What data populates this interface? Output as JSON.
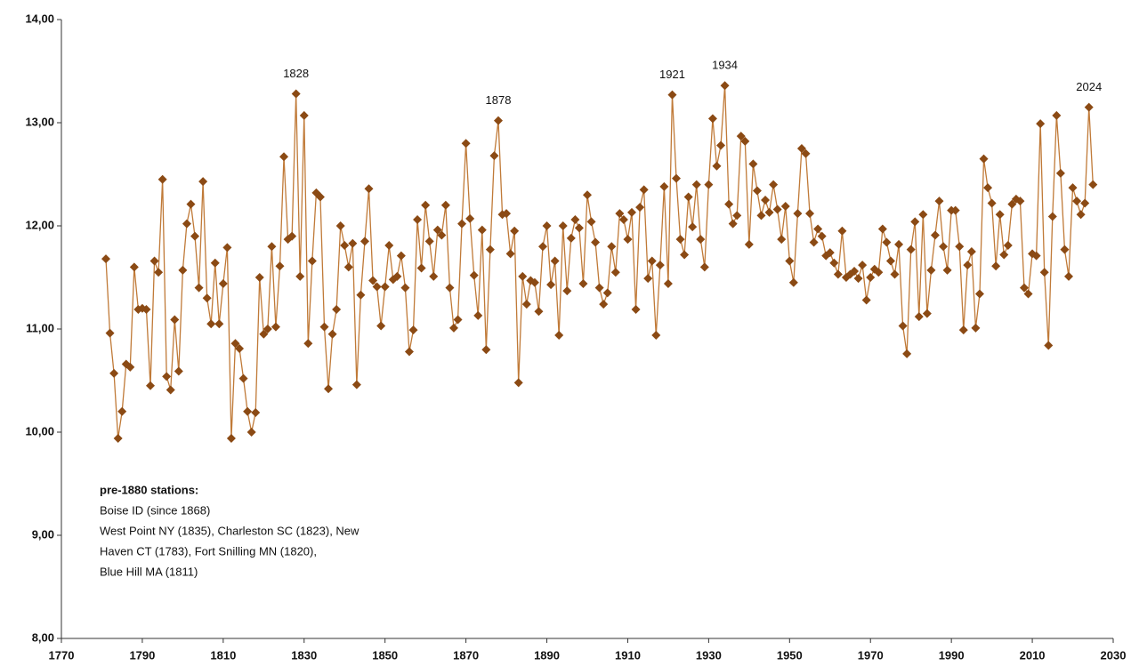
{
  "chart_data": {
    "type": "line",
    "x": [
      1781,
      1782,
      1783,
      1784,
      1785,
      1786,
      1787,
      1788,
      1789,
      1790,
      1791,
      1792,
      1793,
      1794,
      1795,
      1796,
      1797,
      1798,
      1799,
      1800,
      1801,
      1802,
      1803,
      1804,
      1805,
      1806,
      1807,
      1808,
      1809,
      1810,
      1811,
      1812,
      1813,
      1814,
      1815,
      1816,
      1817,
      1818,
      1819,
      1820,
      1821,
      1822,
      1823,
      1824,
      1825,
      1826,
      1827,
      1828,
      1829,
      1830,
      1831,
      1832,
      1833,
      1834,
      1835,
      1836,
      1837,
      1838,
      1839,
      1840,
      1841,
      1842,
      1843,
      1844,
      1845,
      1846,
      1847,
      1848,
      1849,
      1850,
      1851,
      1852,
      1853,
      1854,
      1855,
      1856,
      1857,
      1858,
      1859,
      1860,
      1861,
      1862,
      1863,
      1864,
      1865,
      1866,
      1867,
      1868,
      1869,
      1870,
      1871,
      1872,
      1873,
      1874,
      1875,
      1876,
      1877,
      1878,
      1879,
      1880,
      1881,
      1882,
      1883,
      1884,
      1885,
      1886,
      1887,
      1888,
      1889,
      1890,
      1891,
      1892,
      1893,
      1894,
      1895,
      1896,
      1897,
      1898,
      1899,
      1900,
      1901,
      1902,
      1903,
      1904,
      1905,
      1906,
      1907,
      1908,
      1909,
      1910,
      1911,
      1912,
      1913,
      1914,
      1915,
      1916,
      1917,
      1918,
      1919,
      1920,
      1921,
      1922,
      1923,
      1924,
      1925,
      1926,
      1927,
      1928,
      1929,
      1930,
      1931,
      1932,
      1933,
      1934,
      1935,
      1936,
      1937,
      1938,
      1939,
      1940,
      1941,
      1942,
      1943,
      1944,
      1945,
      1946,
      1947,
      1948,
      1949,
      1950,
      1951,
      1952,
      1953,
      1954,
      1955,
      1956,
      1957,
      1958,
      1959,
      1960,
      1961,
      1962,
      1963,
      1964,
      1965,
      1966,
      1967,
      1968,
      1969,
      1970,
      1971,
      1972,
      1973,
      1974,
      1975,
      1976,
      1977,
      1978,
      1979,
      1980,
      1981,
      1982,
      1983,
      1984,
      1985,
      1986,
      1987,
      1988,
      1989,
      1990,
      1991,
      1992,
      1993,
      1994,
      1995,
      1996,
      1997,
      1998,
      1999,
      2000,
      2001,
      2002,
      2003,
      2004,
      2005,
      2006,
      2007,
      2008,
      2009,
      2010,
      2011,
      2012,
      2013,
      2014,
      2015,
      2016,
      2017,
      2018,
      2019,
      2020,
      2021,
      2022,
      2023,
      2024,
      2025
    ],
    "values": [
      11.68,
      10.96,
      10.57,
      9.94,
      10.2,
      10.66,
      10.63,
      11.6,
      11.19,
      11.2,
      11.19,
      10.45,
      11.66,
      11.55,
      12.45,
      10.54,
      10.41,
      11.09,
      10.59,
      11.57,
      12.02,
      12.21,
      11.9,
      11.4,
      12.43,
      11.3,
      11.05,
      11.64,
      11.05,
      11.44,
      11.79,
      9.94,
      10.86,
      10.81,
      10.52,
      10.2,
      10.0,
      10.19,
      11.5,
      10.95,
      11.0,
      11.8,
      11.02,
      11.61,
      12.67,
      11.87,
      11.9,
      13.28,
      11.51,
      13.07,
      10.86,
      11.66,
      12.32,
      12.28,
      11.02,
      10.42,
      10.95,
      11.19,
      12.0,
      11.81,
      11.6,
      11.83,
      10.46,
      11.33,
      11.85,
      12.36,
      11.47,
      11.41,
      11.03,
      11.41,
      11.81,
      11.48,
      11.51,
      11.71,
      11.4,
      10.78,
      10.99,
      12.06,
      11.59,
      12.2,
      11.85,
      11.51,
      11.96,
      11.91,
      12.2,
      11.4,
      11.01,
      11.09,
      12.02,
      12.8,
      12.07,
      11.52,
      11.13,
      11.96,
      10.8,
      11.77,
      12.68,
      13.02,
      12.11,
      12.12,
      11.73,
      11.95,
      10.48,
      11.51,
      11.24,
      11.47,
      11.45,
      11.17,
      11.8,
      12.0,
      11.43,
      11.66,
      10.94,
      12.0,
      11.37,
      11.88,
      12.06,
      11.98,
      11.44,
      12.3,
      12.04,
      11.84,
      11.4,
      11.24,
      11.35,
      11.8,
      11.55,
      12.12,
      12.06,
      11.87,
      12.13,
      11.19,
      12.18,
      12.35,
      11.49,
      11.66,
      10.94,
      11.62,
      12.38,
      11.44,
      13.27,
      12.46,
      11.87,
      11.72,
      12.28,
      11.99,
      12.4,
      11.87,
      11.6,
      12.4,
      13.04,
      12.58,
      12.78,
      13.36,
      12.21,
      12.02,
      12.1,
      12.87,
      12.82,
      11.82,
      12.6,
      12.34,
      12.1,
      12.25,
      12.13,
      12.4,
      12.16,
      11.87,
      12.19,
      11.66,
      11.45,
      12.12,
      12.75,
      12.7,
      12.12,
      11.84,
      11.97,
      11.9,
      11.71,
      11.74,
      11.64,
      11.53,
      11.95,
      11.5,
      11.53,
      11.56,
      11.49,
      11.62,
      11.28,
      11.5,
      11.58,
      11.55,
      11.97,
      11.84,
      11.66,
      11.53,
      11.82,
      11.03,
      10.76,
      11.77,
      12.04,
      11.12,
      12.11,
      11.15,
      11.57,
      11.91,
      12.24,
      11.8,
      11.57,
      12.15,
      12.15,
      11.8,
      10.99,
      11.62,
      11.75,
      11.01,
      11.34,
      12.65,
      12.37,
      12.22,
      11.61,
      12.11,
      11.72,
      11.81,
      12.21,
      12.26,
      12.24,
      11.4,
      11.34,
      11.73,
      11.71,
      12.99,
      11.55,
      10.84,
      12.09,
      13.07,
      12.51,
      11.77,
      11.51,
      12.37,
      12.24,
      12.11,
      12.22,
      13.15,
      12.4
    ],
    "color": "#c07a38",
    "marker_color": "#8b4a14",
    "xlim": [
      1770,
      2030
    ],
    "xticks": [
      1770,
      1790,
      1810,
      1830,
      1850,
      1870,
      1890,
      1910,
      1930,
      1950,
      1970,
      1990,
      2010,
      2030
    ],
    "ylim": [
      8,
      14
    ],
    "yticks": [
      {
        "value": 8,
        "label": "8,00"
      },
      {
        "value": 9,
        "label": "9,00"
      },
      {
        "value": 10,
        "label": "10,00"
      },
      {
        "value": 11,
        "label": "11,00"
      },
      {
        "value": 12,
        "label": "12,00"
      },
      {
        "value": 13,
        "label": "13,00"
      },
      {
        "value": 14,
        "label": "14,00"
      }
    ],
    "grid": false,
    "annotations": [
      "1828",
      "1878",
      "1921",
      "1934",
      "2024"
    ],
    "note": {
      "title": "pre-1880 stations:",
      "lines": [
        "Boise ID (since 1868)",
        "West Point NY (1835), Charleston SC (1823), New",
        "Haven CT (1783), Fort Snilling MN (1820),",
        "Blue Hill MA (1811)"
      ]
    }
  }
}
